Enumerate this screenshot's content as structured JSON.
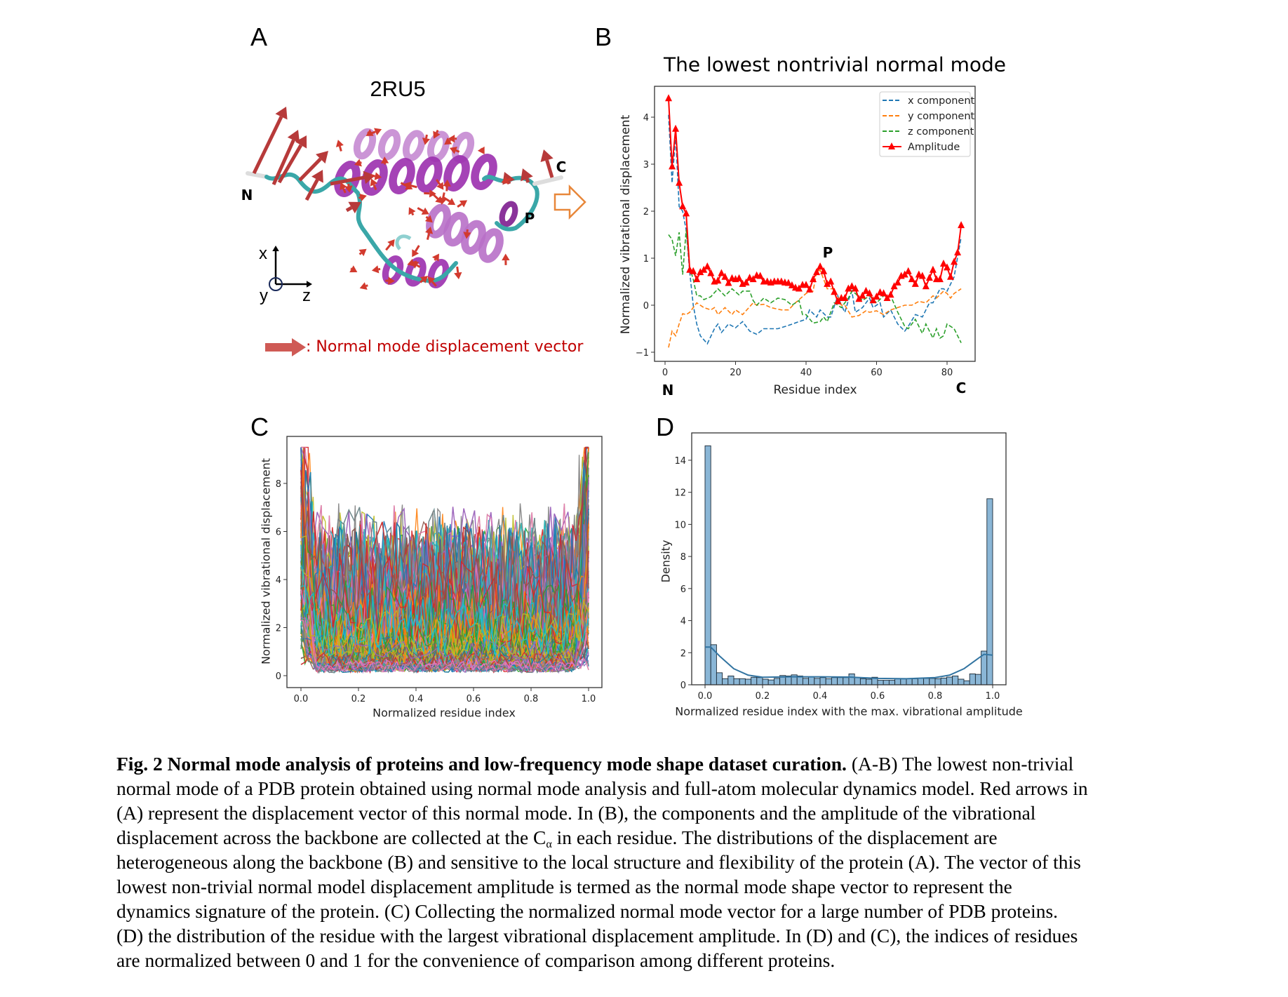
{
  "panels": {
    "a": "A",
    "b": "B",
    "c": "C",
    "d": "D"
  },
  "panel_a": {
    "title": "2RU5",
    "n_label": "N",
    "c_label": "C",
    "p_label": "P",
    "axis_x": "x",
    "axis_y": "y",
    "axis_z": "z",
    "legend_text": ": Normal mode displacement vector",
    "colors": {
      "helix": "#9b2fae",
      "coil": "#3aa7a8",
      "arrow": "#c0392b",
      "legend_text": "#c00000",
      "transition_arrow": "#e8873a"
    }
  },
  "chart_data": [
    {
      "type": "line",
      "title": "The lowest nontrivial normal mode",
      "xlabel": "Residue index",
      "ylabel": "Normalized vibrational displacement",
      "xlim": [
        -3,
        88
      ],
      "ylim": [
        -1.2,
        4.7
      ],
      "xticks": [
        "0",
        "20",
        "40",
        "60",
        "80"
      ],
      "xtick_values": [
        0,
        20,
        40,
        60,
        80
      ],
      "yticks": [
        "−1",
        "0",
        "1",
        "2",
        "3",
        "4"
      ],
      "ytick_values": [
        -1,
        0,
        1,
        2,
        3,
        4
      ],
      "grid": false,
      "legend_position": "top-right",
      "annotations": {
        "n_terminus": "N",
        "c_terminus": "C",
        "peak": "P"
      },
      "series": [
        {
          "name": "x component",
          "color": "#1f77b4",
          "style": "dashed",
          "x": [
            1,
            2,
            3,
            4,
            5,
            6,
            7,
            8,
            9,
            10,
            12,
            14,
            15,
            16,
            18,
            20,
            22,
            24,
            26,
            28,
            32,
            35,
            38,
            40,
            41,
            43,
            44,
            46,
            47,
            49,
            50,
            51,
            52,
            53,
            54,
            56,
            58,
            59,
            61,
            62,
            64,
            66,
            68,
            69,
            71,
            73,
            75,
            76,
            78,
            79,
            80,
            82,
            84
          ],
          "y": [
            4.05,
            2.6,
            3.6,
            2.1,
            2.0,
            1.6,
            0.7,
            0.0,
            -0.4,
            -0.65,
            -0.82,
            -0.5,
            -0.4,
            -0.58,
            -0.4,
            -0.48,
            -0.35,
            -0.55,
            -0.62,
            -0.5,
            -0.5,
            -0.43,
            -0.35,
            -0.3,
            -0.1,
            -0.25,
            -0.1,
            -0.25,
            -0.25,
            0.2,
            0.0,
            -0.15,
            0.1,
            0.3,
            -0.15,
            -0.05,
            0.15,
            -0.05,
            0.05,
            -0.25,
            -0.1,
            -0.4,
            -0.55,
            -0.45,
            -0.2,
            -0.25,
            0.05,
            0.05,
            0.35,
            0.35,
            0.3,
            0.6,
            1.45
          ]
        },
        {
          "name": "y component",
          "color": "#ff7f0e",
          "style": "dashed",
          "x": [
            1,
            2,
            3,
            4,
            5,
            6,
            7,
            9,
            11,
            13,
            14,
            15,
            17,
            19,
            20,
            22,
            25,
            26,
            28,
            30,
            33,
            35,
            37,
            40,
            42,
            43,
            44,
            46,
            48,
            50,
            51,
            53,
            55,
            57,
            58,
            60,
            62,
            64,
            66,
            68,
            70,
            72,
            74,
            76,
            77,
            79,
            80,
            81,
            82,
            84
          ],
          "y": [
            -0.9,
            -0.55,
            -0.65,
            -0.4,
            -0.18,
            -0.2,
            -0.15,
            0.05,
            -0.05,
            -0.1,
            -0.05,
            -0.2,
            -0.05,
            -0.2,
            -0.1,
            -0.2,
            0.05,
            0.0,
            0.02,
            -0.05,
            -0.1,
            -0.1,
            0.05,
            0.25,
            0.3,
            0.7,
            0.75,
            0.35,
            0.35,
            0.0,
            0.0,
            -0.25,
            -0.22,
            -0.12,
            -0.15,
            -0.12,
            -0.2,
            -0.1,
            -0.05,
            0.0,
            0.0,
            0.08,
            0.05,
            0.2,
            0.15,
            0.3,
            0.25,
            0.15,
            0.25,
            0.35
          ]
        },
        {
          "name": "z component",
          "color": "#2ca02c",
          "style": "dashed",
          "x": [
            1,
            2,
            3,
            4,
            5,
            6,
            7,
            8,
            9,
            10,
            11,
            13,
            15,
            17,
            19,
            21,
            22,
            24,
            25,
            26,
            28,
            30,
            32,
            34,
            36,
            38,
            39,
            40,
            42,
            44,
            45,
            46,
            48,
            50,
            52,
            53,
            54,
            56,
            58,
            60,
            62,
            64,
            66,
            68,
            69,
            71,
            73,
            74,
            76,
            77,
            78,
            79,
            80,
            82,
            84
          ],
          "y": [
            1.5,
            1.4,
            1.05,
            1.55,
            0.65,
            1.6,
            0.8,
            0.55,
            0.2,
            0.2,
            0.12,
            0.18,
            0.35,
            0.2,
            0.35,
            0.22,
            0.3,
            0.3,
            0.1,
            0.0,
            0.15,
            0.05,
            0.15,
            0.12,
            0.0,
            0.1,
            -0.2,
            -0.2,
            -0.38,
            -0.35,
            -0.25,
            -0.35,
            0.05,
            -0.05,
            0.15,
            0.3,
            0.25,
            0.1,
            0.2,
            0.05,
            0.2,
            0.2,
            -0.15,
            -0.45,
            -0.5,
            -0.3,
            -0.6,
            -0.4,
            -0.7,
            -0.5,
            -0.7,
            -0.65,
            -0.4,
            -0.5,
            -0.8
          ]
        },
        {
          "name": "Amplitude",
          "color": "#ff0000",
          "style": "solid",
          "marker": "triangle",
          "x": [
            1,
            2,
            3,
            4,
            5,
            6,
            7,
            8,
            9,
            10,
            11,
            12,
            13,
            14,
            15,
            16,
            17,
            18,
            19,
            20,
            21,
            22,
            23,
            24,
            25,
            26,
            27,
            28,
            29,
            30,
            31,
            32,
            33,
            34,
            35,
            36,
            37,
            38,
            39,
            40,
            41,
            42,
            43,
            44,
            45,
            46,
            47,
            48,
            49,
            50,
            51,
            52,
            53,
            54,
            55,
            56,
            57,
            58,
            59,
            60,
            61,
            62,
            63,
            64,
            65,
            66,
            67,
            68,
            69,
            70,
            71,
            72,
            73,
            74,
            75,
            76,
            77,
            78,
            79,
            80,
            81,
            82,
            83,
            84
          ],
          "y": [
            4.4,
            2.95,
            3.75,
            2.6,
            2.1,
            1.95,
            0.75,
            0.72,
            0.55,
            0.7,
            0.75,
            0.82,
            0.68,
            0.5,
            0.52,
            0.68,
            0.6,
            0.47,
            0.57,
            0.55,
            0.57,
            0.45,
            0.48,
            0.58,
            0.55,
            0.63,
            0.62,
            0.5,
            0.5,
            0.48,
            0.5,
            0.5,
            0.5,
            0.48,
            0.47,
            0.42,
            0.37,
            0.35,
            0.43,
            0.43,
            0.33,
            0.55,
            0.7,
            0.82,
            0.72,
            0.45,
            0.5,
            0.28,
            0.08,
            0.15,
            0.15,
            0.35,
            0.4,
            0.35,
            0.13,
            0.2,
            0.3,
            0.25,
            0.1,
            0.18,
            0.27,
            0.25,
            0.15,
            0.22,
            0.4,
            0.48,
            0.62,
            0.65,
            0.72,
            0.55,
            0.45,
            0.65,
            0.62,
            0.4,
            0.58,
            0.75,
            0.55,
            0.55,
            0.88,
            0.8,
            0.6,
            0.92,
            1.12,
            1.7
          ]
        }
      ]
    },
    {
      "type": "line",
      "xlabel": "Normalized residue index",
      "ylabel": "Normalized vibrational displacement",
      "xlim": [
        -0.05,
        1.05
      ],
      "ylim": [
        -0.5,
        9.9
      ],
      "xticks": [
        "0.0",
        "0.2",
        "0.4",
        "0.6",
        "0.8",
        "1.0"
      ],
      "xtick_values": [
        0,
        0.2,
        0.4,
        0.6,
        0.8,
        1.0
      ],
      "yticks": [
        "0",
        "2",
        "4",
        "6",
        "8"
      ],
      "ytick_values": [
        0,
        2,
        4,
        6,
        8
      ],
      "grid": false,
      "series_description_visible": "many overlapping per-protein curves",
      "palette": [
        "#1f77b4",
        "#ff7f0e",
        "#2ca02c",
        "#d62728",
        "#9467bd",
        "#8c564b",
        "#e377c2",
        "#7f7f7f",
        "#bcbd22",
        "#17becf"
      ]
    },
    {
      "type": "bar",
      "subtype": "histogram",
      "xlabel": "Normalized residue index with the max. vibrational amplitude",
      "ylabel": "Density",
      "xlim": [
        -0.05,
        1.05
      ],
      "ylim": [
        0,
        15.7
      ],
      "xticks": [
        "0.0",
        "0.2",
        "0.4",
        "0.6",
        "0.8",
        "1.0"
      ],
      "xtick_values": [
        0,
        0.2,
        0.4,
        0.6,
        0.8,
        1.0
      ],
      "yticks": [
        "0",
        "2",
        "4",
        "6",
        "8",
        "10",
        "12",
        "14"
      ],
      "ytick_values": [
        0,
        2,
        4,
        6,
        8,
        10,
        12,
        14
      ],
      "grid": false,
      "bin_width": 0.02,
      "bar_color": "#8ab6d6",
      "kde_color": "#3274a1",
      "values": [
        14.9,
        2.5,
        0.75,
        0.38,
        0.55,
        0.38,
        0.38,
        0.35,
        0.47,
        0.45,
        0.35,
        0.3,
        0.4,
        0.58,
        0.55,
        0.62,
        0.55,
        0.4,
        0.5,
        0.4,
        0.45,
        0.38,
        0.45,
        0.45,
        0.45,
        0.68,
        0.45,
        0.38,
        0.35,
        0.47,
        0.28,
        0.28,
        0.28,
        0.38,
        0.38,
        0.38,
        0.38,
        0.4,
        0.4,
        0.4,
        0.38,
        0.42,
        0.48,
        0.55,
        0.35,
        0.25,
        0.68,
        0.65,
        2.1,
        11.6
      ],
      "kde": {
        "x": [
          0,
          0.02,
          0.05,
          0.1,
          0.15,
          0.2,
          0.3,
          0.4,
          0.5,
          0.6,
          0.7,
          0.8,
          0.85,
          0.9,
          0.95,
          0.97,
          1.0
        ],
        "y": [
          2.35,
          2.35,
          1.8,
          1.0,
          0.6,
          0.47,
          0.5,
          0.5,
          0.48,
          0.4,
          0.38,
          0.45,
          0.6,
          1.0,
          1.65,
          1.9,
          1.85
        ]
      }
    }
  ],
  "caption": {
    "bold": "Fig. 2 Normal mode analysis of proteins and low-frequency mode shape dataset curation.",
    "line1_rest": " (A-B) The lowest non-trivial",
    "line2": "normal mode of a PDB protein obtained using normal mode analysis and full-atom molecular dynamics model. Red arrows in",
    "line3": "(A) represent the displacement vector of this normal mode. In (B), the components and the amplitude of the vibrational",
    "line4_a": "displacement across the backbone are collected at the C",
    "line4_sub": "α",
    "line4_b": " in each residue. The distributions of the displacement are",
    "line5": "heterogeneous along the backbone (B) and sensitive to the local structure and flexibility of the protein (A). The vector of this",
    "line6": "lowest non-trivial normal model displacement amplitude is termed as the normal mode shape vector to represent the",
    "line7": "dynamics signature of the protein. (C) Collecting the normalized normal mode vector for a large number of PDB proteins.",
    "line8": "(D) the distribution of the residue with the largest vibrational displacement amplitude. In (D) and (C), the indices of residues",
    "line9": "are normalized between 0 and 1 for the convenience of comparison among different proteins."
  }
}
